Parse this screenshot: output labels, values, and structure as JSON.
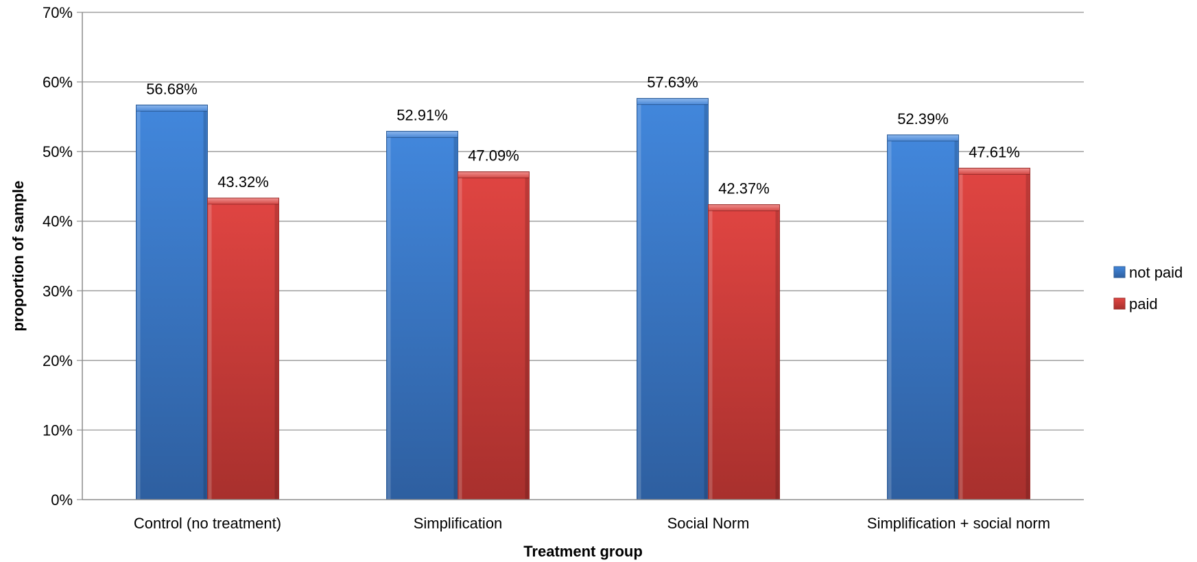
{
  "chart_data": {
    "type": "bar",
    "title": "",
    "xlabel": "Treatment group",
    "ylabel": "proportion of sample",
    "ylim": [
      0,
      70
    ],
    "y_tick_step": 10,
    "y_unit": "%",
    "grid": true,
    "legend_position": "right",
    "categories": [
      "Control (no treatment)",
      "Simplification",
      "Social Norm",
      "Simplification + social norm"
    ],
    "series": [
      {
        "name": "not paid",
        "values": [
          56.68,
          52.91,
          57.63,
          52.39
        ],
        "labels": [
          "56.68%",
          "52.91%",
          "57.63%",
          "52.39%"
        ],
        "color": "#3B78C8"
      },
      {
        "name": "paid",
        "values": [
          43.32,
          47.09,
          42.37,
          47.61
        ],
        "labels": [
          "43.32%",
          "47.09%",
          "42.37%",
          "47.61%"
        ],
        "color": "#D03C3A"
      }
    ]
  }
}
